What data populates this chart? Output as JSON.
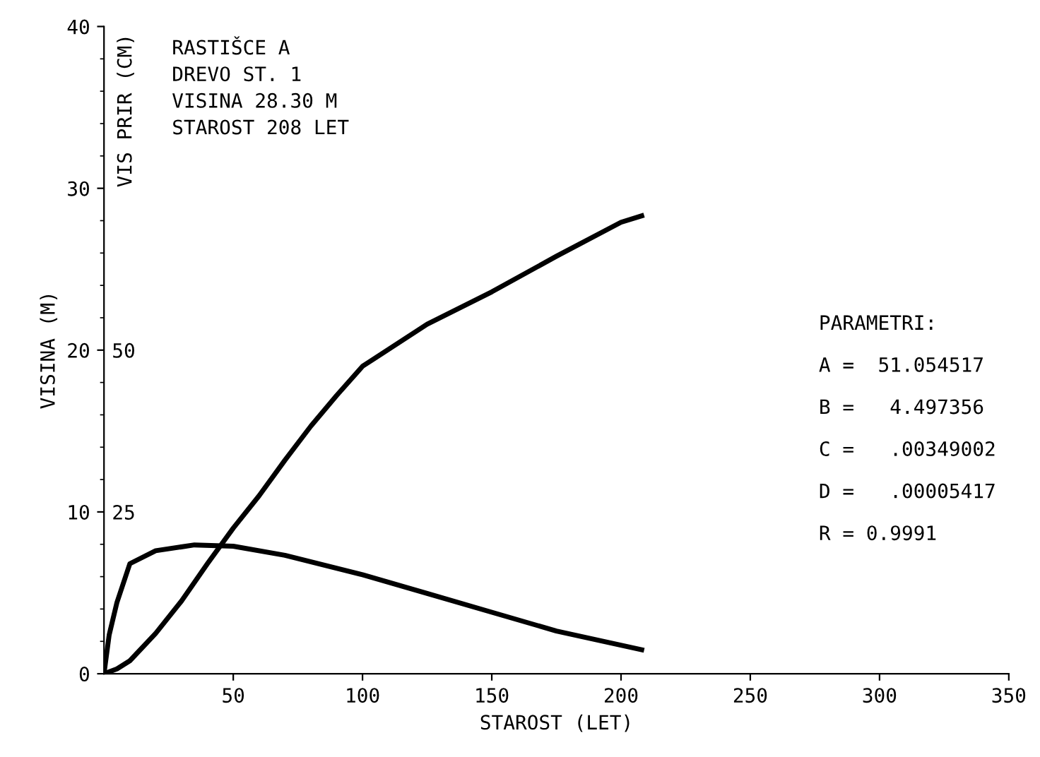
{
  "chart_data": {
    "type": "line",
    "title": "RASTIŠCE A\nDREVO ST. 1\nVISINA 28.30 M\nSTAROST 208 LET",
    "xlabel": "STAROST (LET)",
    "ylabel": "VISINA (M)",
    "y2label": "VIS PRIR (CM)",
    "x": [
      0,
      5,
      10,
      20,
      30,
      40,
      50,
      60,
      70,
      80,
      90,
      100,
      125,
      150,
      175,
      200,
      208
    ],
    "series": [
      {
        "color": "#000000",
        "values": [
          0,
          0.3,
          0.8,
          2.5,
          4.5,
          6.8,
          9.0,
          11.0,
          13.2,
          15.3,
          17.2,
          19.0,
          21.6,
          23.6,
          25.8,
          27.9,
          28.3
        ]
      },
      {
        "color": "#000000",
        "axis": "y2",
        "x": [
          0,
          2,
          5,
          10,
          20,
          35,
          50,
          70,
          100,
          125,
          150,
          175,
          208
        ],
        "values": [
          0,
          6,
          11,
          17,
          19,
          19.9,
          19.7,
          18.3,
          15.3,
          12.4,
          9.5,
          6.6,
          3.7
        ]
      }
    ],
    "xlim": [
      0,
      350
    ],
    "xticks": [
      50,
      100,
      150,
      200,
      250,
      300,
      350
    ],
    "ylim": [
      0,
      40
    ],
    "yticks": [
      0,
      10,
      20,
      30,
      40
    ],
    "y2lim": [
      0,
      100
    ],
    "y2ticks": [
      25,
      50
    ],
    "grid": false,
    "legend": false,
    "marker": "none",
    "line_style": "solid",
    "annotations": [
      "PARAMETRI:",
      "A =  51.054517",
      "B =   4.497356",
      "C =   .00349002",
      "D =   .00005417",
      "R = 0.9991"
    ]
  }
}
